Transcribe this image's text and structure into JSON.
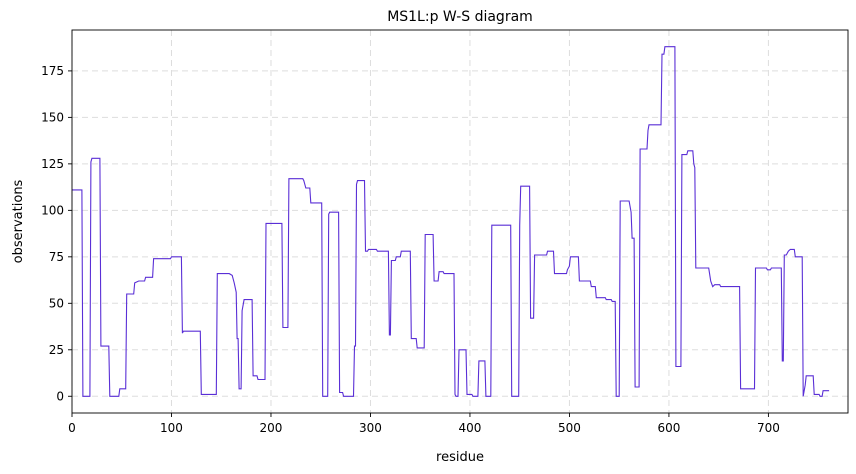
{
  "chart_data": {
    "type": "line",
    "title": "MS1L:p W-S diagram",
    "xlabel": "residue",
    "ylabel": "observations",
    "xlim": [
      0,
      780
    ],
    "ylim": [
      -9,
      197
    ],
    "xticks": [
      0,
      100,
      200,
      300,
      400,
      500,
      600,
      700
    ],
    "yticks": [
      0,
      25,
      50,
      75,
      100,
      125,
      150,
      175
    ],
    "grid": true,
    "line_color": "#5a2fd6",
    "grid_color": "#dddddd",
    "series": [
      {
        "step_points": [
          [
            0,
            111
          ],
          [
            10,
            111
          ],
          [
            11,
            0
          ],
          [
            18,
            0
          ],
          [
            19,
            126
          ],
          [
            20,
            128
          ],
          [
            28,
            128
          ],
          [
            29,
            27
          ],
          [
            37,
            27
          ],
          [
            38,
            0
          ],
          [
            47,
            0
          ],
          [
            48,
            4
          ],
          [
            54,
            4
          ],
          [
            55,
            55
          ],
          [
            62,
            55
          ],
          [
            63,
            61
          ],
          [
            67,
            62
          ],
          [
            73,
            62
          ],
          [
            74,
            64
          ],
          [
            81,
            64
          ],
          [
            82,
            74
          ],
          [
            99,
            74
          ],
          [
            100,
            75
          ],
          [
            110,
            75
          ],
          [
            111,
            34
          ],
          [
            112,
            35
          ],
          [
            129,
            35
          ],
          [
            130,
            1
          ],
          [
            145,
            1
          ],
          [
            146,
            66
          ],
          [
            158,
            66
          ],
          [
            161,
            65
          ],
          [
            163,
            61
          ],
          [
            165,
            56
          ],
          [
            166,
            31
          ],
          [
            167,
            31
          ],
          [
            168,
            4
          ],
          [
            170,
            4
          ],
          [
            171,
            46
          ],
          [
            173,
            52
          ],
          [
            181,
            52
          ],
          [
            182,
            11
          ],
          [
            186,
            11
          ],
          [
            187,
            9
          ],
          [
            194,
            9
          ],
          [
            195,
            93
          ],
          [
            211,
            93
          ],
          [
            212,
            37
          ],
          [
            217,
            37
          ],
          [
            218,
            117
          ],
          [
            232,
            117
          ],
          [
            233,
            116
          ],
          [
            235,
            112
          ],
          [
            239,
            112
          ],
          [
            240,
            104
          ],
          [
            251,
            104
          ],
          [
            252,
            0
          ],
          [
            257,
            0
          ],
          [
            258,
            98
          ],
          [
            259,
            99
          ],
          [
            268,
            99
          ],
          [
            269,
            2
          ],
          [
            272,
            2
          ],
          [
            273,
            0
          ],
          [
            283,
            0
          ],
          [
            284,
            27
          ],
          [
            285,
            27
          ],
          [
            286,
            114
          ],
          [
            287,
            116
          ],
          [
            294,
            116
          ],
          [
            295,
            78
          ],
          [
            297,
            78
          ],
          [
            298,
            79
          ],
          [
            306,
            79
          ],
          [
            307,
            78
          ],
          [
            318,
            78
          ],
          [
            319,
            33
          ],
          [
            320,
            33
          ],
          [
            321,
            73
          ],
          [
            325,
            73
          ],
          [
            326,
            75
          ],
          [
            330,
            75
          ],
          [
            331,
            78
          ],
          [
            340,
            78
          ],
          [
            341,
            31
          ],
          [
            346,
            31
          ],
          [
            347,
            26
          ],
          [
            354,
            26
          ],
          [
            355,
            87
          ],
          [
            363,
            87
          ],
          [
            364,
            62
          ],
          [
            368,
            62
          ],
          [
            369,
            67
          ],
          [
            373,
            67
          ],
          [
            374,
            66
          ],
          [
            384,
            66
          ],
          [
            385,
            1
          ],
          [
            386,
            0
          ],
          [
            388,
            0
          ],
          [
            389,
            25
          ],
          [
            396,
            25
          ],
          [
            397,
            1
          ],
          [
            402,
            1
          ],
          [
            403,
            0
          ],
          [
            408,
            0
          ],
          [
            409,
            19
          ],
          [
            415,
            19
          ],
          [
            416,
            0
          ],
          [
            421,
            0
          ],
          [
            422,
            92
          ],
          [
            441,
            92
          ],
          [
            442,
            0
          ],
          [
            449,
            0
          ],
          [
            450,
            92
          ],
          [
            451,
            113
          ],
          [
            460,
            113
          ],
          [
            461,
            42
          ],
          [
            464,
            42
          ],
          [
            465,
            76
          ],
          [
            477,
            76
          ],
          [
            478,
            78
          ],
          [
            484,
            78
          ],
          [
            485,
            66
          ],
          [
            497,
            66
          ],
          [
            498,
            68
          ],
          [
            500,
            70
          ],
          [
            501,
            75
          ],
          [
            509,
            75
          ],
          [
            510,
            62
          ],
          [
            521,
            62
          ],
          [
            522,
            59
          ],
          [
            526,
            59
          ],
          [
            527,
            53
          ],
          [
            536,
            53
          ],
          [
            537,
            52
          ],
          [
            542,
            52
          ],
          [
            543,
            51
          ],
          [
            546,
            51
          ],
          [
            547,
            0
          ],
          [
            550,
            0
          ],
          [
            551,
            105
          ],
          [
            560,
            105
          ],
          [
            562,
            99
          ],
          [
            563,
            85
          ],
          [
            565,
            85
          ],
          [
            566,
            5
          ],
          [
            570,
            5
          ],
          [
            571,
            133
          ],
          [
            578,
            133
          ],
          [
            579,
            143
          ],
          [
            580,
            146
          ],
          [
            592,
            146
          ],
          [
            593,
            184
          ],
          [
            595,
            184
          ],
          [
            596,
            188
          ],
          [
            606,
            188
          ],
          [
            607,
            16
          ],
          [
            612,
            16
          ],
          [
            613,
            130
          ],
          [
            618,
            130
          ],
          [
            619,
            132
          ],
          [
            624,
            132
          ],
          [
            625,
            125
          ],
          [
            626,
            123
          ],
          [
            627,
            69
          ],
          [
            640,
            69
          ],
          [
            642,
            62
          ],
          [
            644,
            59
          ],
          [
            646,
            60
          ],
          [
            651,
            60
          ],
          [
            652,
            59
          ],
          [
            671,
            59
          ],
          [
            672,
            4
          ],
          [
            686,
            4
          ],
          [
            687,
            69
          ],
          [
            698,
            69
          ],
          [
            699,
            68
          ],
          [
            702,
            68
          ],
          [
            703,
            69
          ],
          [
            713,
            69
          ],
          [
            714,
            19
          ],
          [
            715,
            19
          ],
          [
            716,
            76
          ],
          [
            718,
            76
          ],
          [
            720,
            78
          ],
          [
            722,
            79
          ],
          [
            726,
            79
          ],
          [
            727,
            75
          ],
          [
            734,
            75
          ],
          [
            735,
            0
          ],
          [
            737,
            6
          ],
          [
            738,
            11
          ],
          [
            745,
            11
          ],
          [
            746,
            1
          ],
          [
            751,
            1
          ],
          [
            752,
            0
          ],
          [
            754,
            0
          ],
          [
            755,
            3
          ],
          [
            761,
            3
          ]
        ]
      }
    ]
  }
}
